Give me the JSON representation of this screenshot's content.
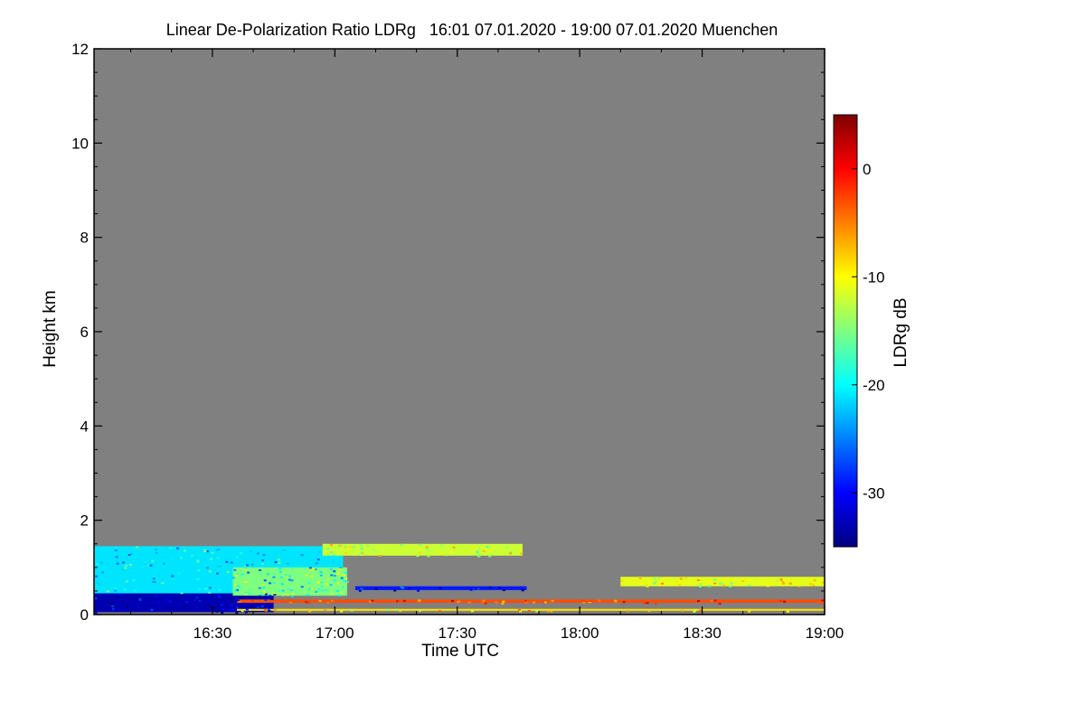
{
  "colors": {
    "background": "#ffffff",
    "plot_background": "#808080",
    "axis": "#000000",
    "colormap": [
      "#00007f",
      "#0000ff",
      "#007fff",
      "#00ffff",
      "#7fff7f",
      "#ffff00",
      "#ff7f00",
      "#ff0000",
      "#7f0000"
    ]
  },
  "chart_data": {
    "type": "heatmap",
    "title": "Linear De-Polarization Ratio LDRg   16:01 07.01.2020 - 19:00 07.01.2020 Muenchen",
    "xlabel": "Time UTC",
    "ylabel": "Height km",
    "colorbar_label": "LDRg dB",
    "x_unit": "minutes since 16:00 UTC",
    "xlim": [
      1,
      180
    ],
    "ylim": [
      0,
      12
    ],
    "color_range": [
      -35,
      5
    ],
    "x_ticks": [
      {
        "value": 30,
        "label": "16:30"
      },
      {
        "value": 60,
        "label": "17:00"
      },
      {
        "value": 90,
        "label": "17:30"
      },
      {
        "value": 120,
        "label": "18:00"
      },
      {
        "value": 150,
        "label": "18:30"
      },
      {
        "value": 180,
        "label": "19:00"
      }
    ],
    "y_ticks": [
      {
        "value": 0,
        "label": "0"
      },
      {
        "value": 2,
        "label": "2"
      },
      {
        "value": 4,
        "label": "4"
      },
      {
        "value": 6,
        "label": "6"
      },
      {
        "value": 8,
        "label": "8"
      },
      {
        "value": 10,
        "label": "10"
      },
      {
        "value": 12,
        "label": "12"
      }
    ],
    "colorbar_ticks": [
      {
        "value": 0,
        "label": "0"
      },
      {
        "value": -10,
        "label": "-10"
      },
      {
        "value": -20,
        "label": "-20"
      },
      {
        "value": -30,
        "label": "-30"
      }
    ],
    "features": [
      {
        "name": "aerosol-layer-upper",
        "x_start": 1,
        "x_end": 62,
        "y_start": 0.45,
        "y_end": 1.45,
        "ldr": -21
      },
      {
        "name": "aerosol-layer-lower",
        "x_start": 1,
        "x_end": 45,
        "y_start": 0.05,
        "y_end": 0.45,
        "ldr": -33
      },
      {
        "name": "mixed-patch",
        "x_start": 35,
        "x_end": 63,
        "y_start": 0.4,
        "y_end": 1.0,
        "ldr": -15
      },
      {
        "name": "elevated-layer",
        "x_start": 57,
        "x_end": 106,
        "y_start": 1.25,
        "y_end": 1.5,
        "ldr": -12
      },
      {
        "name": "blue-band",
        "x_start": 65,
        "x_end": 107,
        "y_start": 0.52,
        "y_end": 0.6,
        "ldr": -29
      },
      {
        "name": "orange-band",
        "x_start": 36,
        "x_end": 180,
        "y_start": 0.25,
        "y_end": 0.32,
        "ldr": -3
      },
      {
        "name": "yellow-dots",
        "x_start": 36,
        "x_end": 180,
        "y_start": 0.08,
        "y_end": 0.12,
        "ldr": -9
      },
      {
        "name": "late-layer",
        "x_start": 130,
        "x_end": 180,
        "y_start": 0.6,
        "y_end": 0.8,
        "ldr": -11
      }
    ]
  }
}
